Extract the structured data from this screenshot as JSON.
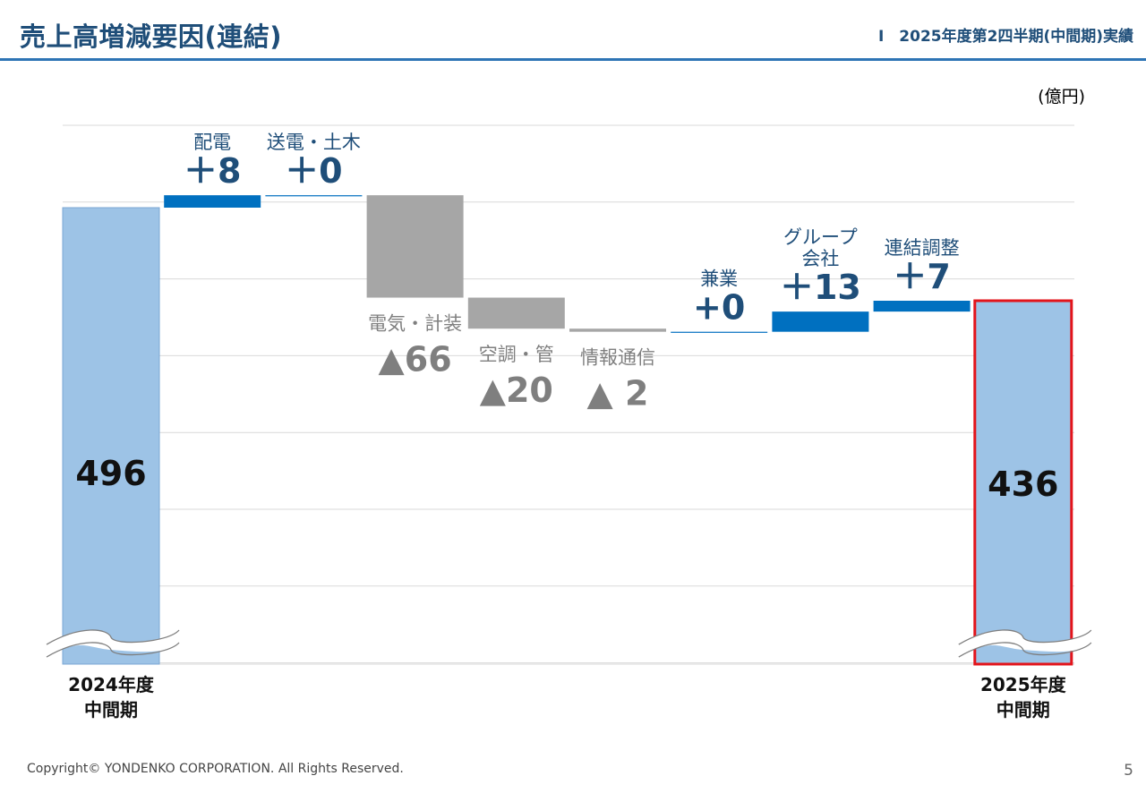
{
  "header": {
    "title": "売上高増減要因(連結)",
    "section": "Ⅰ　2025年度第2四半期(中間期)実績"
  },
  "footer": {
    "copyright": "Copyright© YONDENKO CORPORATION. All Rights Reserved.",
    "page_number": "5"
  },
  "colors": {
    "brand": "#1f4e79",
    "rule": "#2e74b5",
    "total_bar": "#9dc3e6",
    "increase_bar": "#0070c0",
    "decrease_bar": "#a6a6a6",
    "highlight_border": "#e3141b",
    "increase_text": "#1f4e79",
    "decrease_text": "#7f7f7f"
  },
  "chart_data": {
    "type": "bar",
    "subtype": "waterfall",
    "unit": "(億円)",
    "grid": true,
    "axis_break": true,
    "categories": [
      "2024年度\n中間期",
      "配電",
      "送電・土木",
      "電気・計装",
      "空調・管",
      "情報通信",
      "兼業",
      "グループ\n会社",
      "連結調整",
      "2025年度\n中間期"
    ],
    "steps": [
      {
        "label": "2024年度\n中間期",
        "kind": "total",
        "value": 496,
        "value_text": "496"
      },
      {
        "label": "配電",
        "kind": "increase",
        "value": 8,
        "value_text": "＋8"
      },
      {
        "label": "送電・土木",
        "kind": "increase",
        "value": 0,
        "value_text": "＋0"
      },
      {
        "label": "電気・計装",
        "kind": "decrease",
        "value": -66,
        "value_text": "▲66"
      },
      {
        "label": "空調・管",
        "kind": "decrease",
        "value": -20,
        "value_text": "▲20"
      },
      {
        "label": "情報通信",
        "kind": "decrease",
        "value": -2,
        "value_text": "▲ 2"
      },
      {
        "label": "兼業",
        "kind": "increase",
        "value": 0,
        "value_text": "+0"
      },
      {
        "label": "グループ\n会社",
        "kind": "increase",
        "value": 13,
        "value_text": "＋13"
      },
      {
        "label": "連結調整",
        "kind": "increase",
        "value": 7,
        "value_text": "＋7"
      },
      {
        "label": "2025年度\n中間期",
        "kind": "total",
        "value": 436,
        "value_text": "436",
        "highlight": true
      }
    ]
  }
}
